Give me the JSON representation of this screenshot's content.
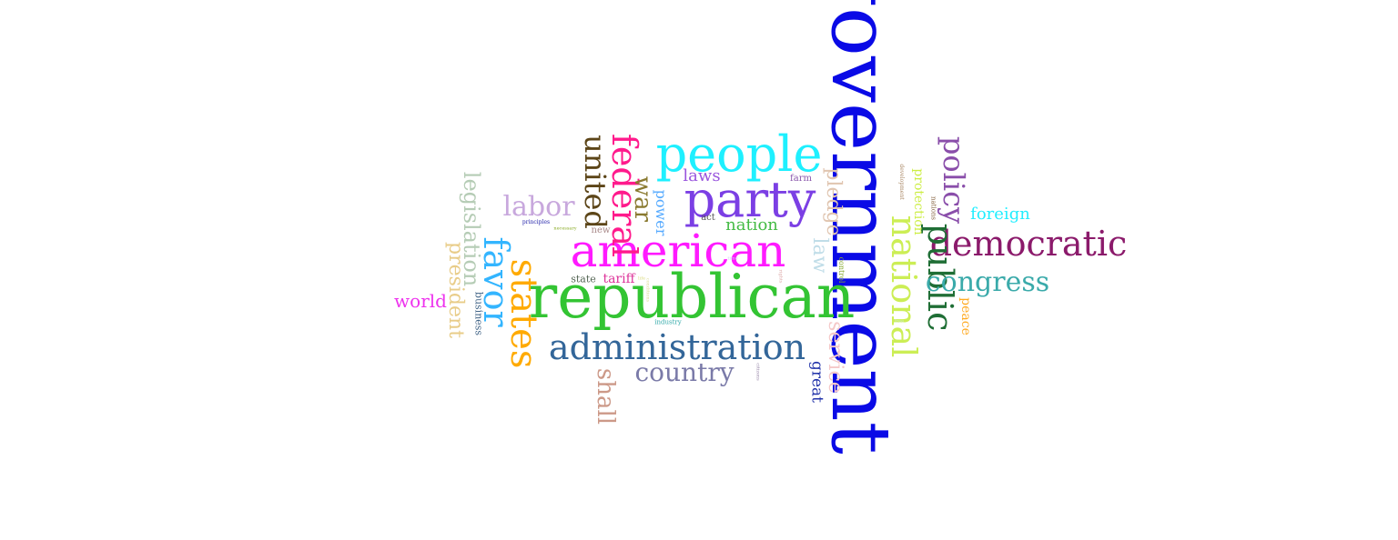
{
  "word_cloud": {
    "words": [
      {
        "text": "government",
        "color": "#0a0ae6",
        "rotated": true
      },
      {
        "text": "republican",
        "color": "#33c433",
        "rotated": false
      },
      {
        "text": "american",
        "color": "#ff1aff",
        "rotated": false
      },
      {
        "text": "party",
        "color": "#7b3fe4",
        "rotated": false
      },
      {
        "text": "people",
        "color": "#1ef0ff",
        "rotated": false
      },
      {
        "text": "states",
        "color": "#ffaa00",
        "rotated": true
      },
      {
        "text": "federal",
        "color": "#ff1a8c",
        "rotated": true
      },
      {
        "text": "administration",
        "color": "#336699",
        "rotated": false
      },
      {
        "text": "democratic",
        "color": "#8b1a6b",
        "rotated": false
      },
      {
        "text": "favor",
        "color": "#33b5ff",
        "rotated": true
      },
      {
        "text": "national",
        "color": "#ccee55",
        "rotated": true
      },
      {
        "text": "public",
        "color": "#1f6e35",
        "rotated": true
      },
      {
        "text": "united",
        "color": "#5c4518",
        "rotated": true
      },
      {
        "text": "congress",
        "color": "#3aaaaa",
        "rotated": false
      },
      {
        "text": "country",
        "color": "#7a7aa8",
        "rotated": false
      },
      {
        "text": "policy",
        "color": "#8a4eaa",
        "rotated": true
      },
      {
        "text": "labor",
        "color": "#c8a8dd",
        "rotated": false
      },
      {
        "text": "war",
        "color": "#8a7a30",
        "rotated": true
      },
      {
        "text": "shall",
        "color": "#cc9988",
        "rotated": true
      },
      {
        "text": "legislation",
        "color": "#b5ccb5",
        "rotated": true
      },
      {
        "text": "service",
        "color": "#f5c8c8",
        "rotated": true
      },
      {
        "text": "pledge",
        "color": "#e0c5b0",
        "rotated": true
      },
      {
        "text": "president",
        "color": "#e8cc88",
        "rotated": true
      },
      {
        "text": "world",
        "color": "#ee33ee",
        "rotated": false
      },
      {
        "text": "law",
        "color": "#c0dde8",
        "rotated": true
      },
      {
        "text": "nation",
        "color": "#44bb44",
        "rotated": false
      },
      {
        "text": "foreign",
        "color": "#22eeff",
        "rotated": false
      },
      {
        "text": "great",
        "color": "#2233aa",
        "rotated": true
      },
      {
        "text": "laws",
        "color": "#9955dd",
        "rotated": false
      },
      {
        "text": "power",
        "color": "#55aaff",
        "rotated": true
      },
      {
        "text": "protection",
        "color": "#ccee44",
        "rotated": true
      },
      {
        "text": "peace",
        "color": "#ffaa22",
        "rotated": true
      },
      {
        "text": "tariff",
        "color": "#dd3399",
        "rotated": false
      },
      {
        "text": "business",
        "color": "#446688",
        "rotated": true
      },
      {
        "text": "state",
        "color": "#556655",
        "rotated": false
      },
      {
        "text": "act",
        "color": "#555555",
        "rotated": false
      },
      {
        "text": "farm",
        "color": "#8855aa",
        "rotated": false
      },
      {
        "text": "new",
        "color": "#a88888",
        "rotated": false
      },
      {
        "text": "control",
        "color": "#88aa33",
        "rotated": true
      },
      {
        "text": "nations",
        "color": "#886644",
        "rotated": true
      },
      {
        "text": "industry",
        "color": "#33aaaa",
        "rotated": false
      },
      {
        "text": "development",
        "color": "#aa8866",
        "rotated": true
      },
      {
        "text": "principles",
        "color": "#2222aa",
        "rotated": false
      },
      {
        "text": "necessary",
        "color": "#88aa22",
        "rotated": false
      },
      {
        "text": "conditions",
        "color": "#dddd99",
        "rotated": true
      },
      {
        "text": "life",
        "color": "#dddd88",
        "rotated": false
      },
      {
        "text": "citizens",
        "color": "#9988aa",
        "rotated": true
      },
      {
        "text": "rights",
        "color": "#ddaaaa",
        "rotated": true
      },
      {
        "text": "time",
        "color": "#ccccee",
        "rotated": false
      },
      {
        "text": "free",
        "color": "#cceecc",
        "rotated": false
      }
    ]
  }
}
